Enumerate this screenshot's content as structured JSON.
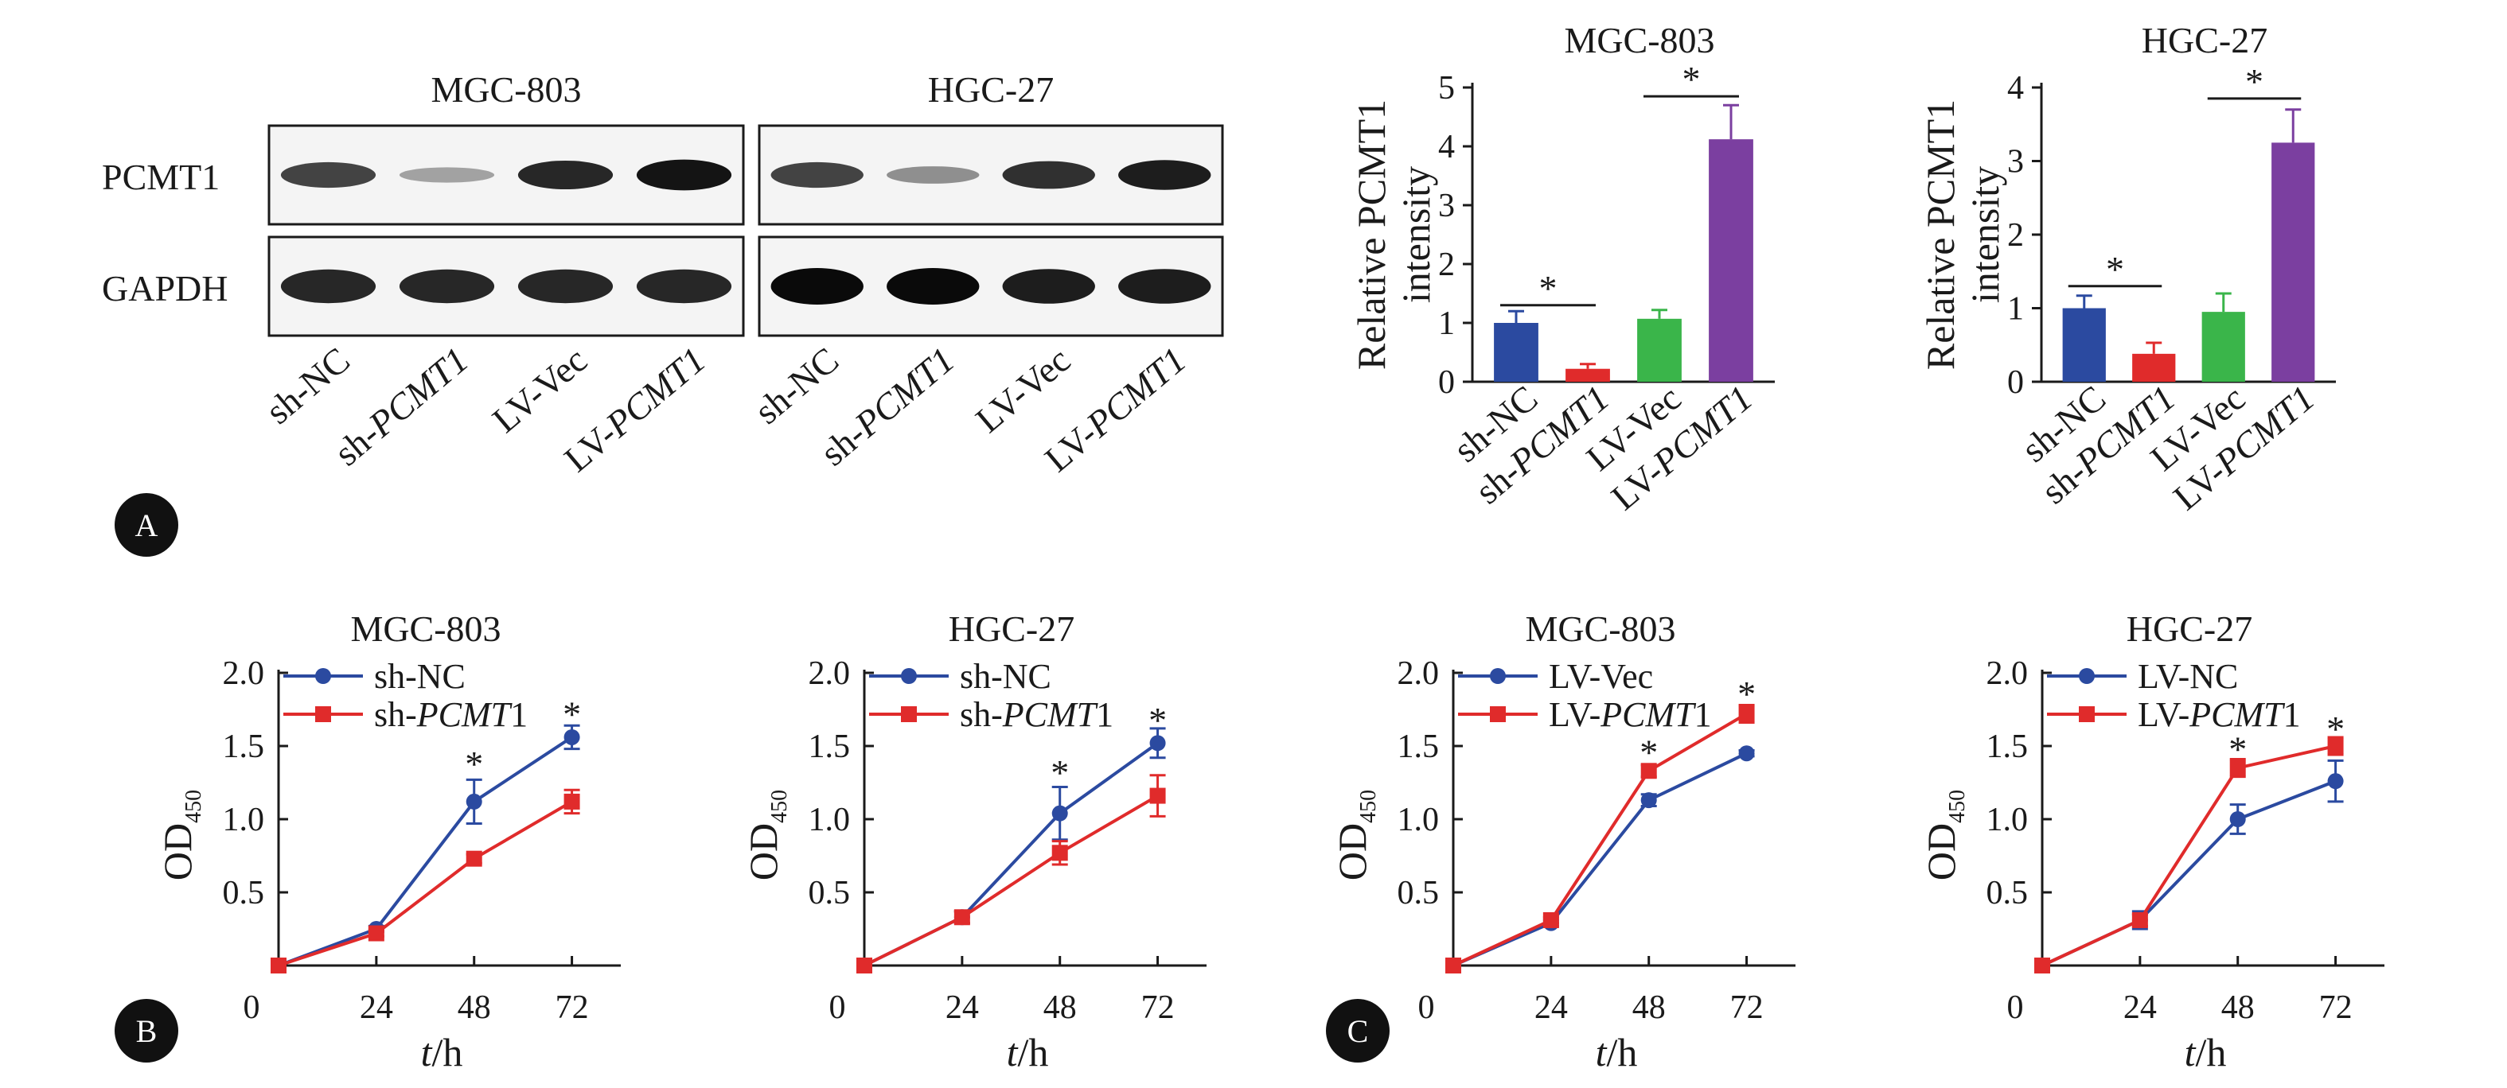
{
  "panels": {
    "a": "A",
    "b": "B",
    "c": "C"
  },
  "western_blot": {
    "rows": [
      "PCMT1",
      "GAPDH"
    ],
    "blots": [
      {
        "title": "MGC-803",
        "lanes": [
          "sh-NC",
          "sh-",
          "LV-Vec",
          "LV-"
        ],
        "lane_suffix": [
          "",
          "PCMT1",
          "",
          "PCMT1"
        ],
        "band_strength": {
          "PCMT1": [
            0.7,
            0.2,
            0.85,
            0.95
          ],
          "GAPDH": [
            0.85,
            0.85,
            0.85,
            0.85
          ]
        }
      },
      {
        "title": "HGC-27",
        "lanes": [
          "sh-NC",
          "sh-",
          "LV-Vec",
          "LV-"
        ],
        "lane_suffix": [
          "",
          "PCMT1",
          "",
          "PCMT1"
        ],
        "band_strength": {
          "PCMT1": [
            0.7,
            0.3,
            0.8,
            0.9
          ],
          "GAPDH": [
            1.0,
            1.0,
            0.9,
            0.9
          ]
        }
      }
    ]
  },
  "colors": {
    "blue": "#2b4aa0",
    "red": "#e02b2b",
    "green": "#3ab54a",
    "purple": "#7b3fa0",
    "ink": "#1a1a1a"
  },
  "chart_data": [
    {
      "type": "bar",
      "title": "MGC-803",
      "ylabel": [
        "Relative PCMT1",
        "intensity"
      ],
      "categories": [
        "sh-NC",
        "sh-PCMT1",
        "LV-Vec",
        "LV-PCMT1"
      ],
      "category_prefix": [
        "sh-NC",
        "sh-",
        "LV-Vec",
        "LV-"
      ],
      "category_italic": [
        "",
        "PCMT1",
        "",
        "PCMT1"
      ],
      "values": [
        1.0,
        0.22,
        1.07,
        4.12
      ],
      "errors": [
        0.2,
        0.08,
        0.15,
        0.58
      ],
      "bar_colors": [
        "#2b4aa0",
        "#e02b2b",
        "#3ab54a",
        "#7b3fa0"
      ],
      "ylim": [
        0,
        5
      ],
      "yticks": [
        0,
        1,
        2,
        3,
        4,
        5
      ],
      "significance": [
        {
          "from": 0,
          "to": 1,
          "label": "*",
          "at": 1.3
        },
        {
          "from": 2,
          "to": 3,
          "label": "*",
          "at": 4.85
        }
      ]
    },
    {
      "type": "bar",
      "title": "HGC-27",
      "ylabel": [
        "Relative PCMT1",
        "intensity"
      ],
      "categories": [
        "sh-NC",
        "sh-PCMT1",
        "LV-Vec",
        "LV-PCMT1"
      ],
      "category_prefix": [
        "sh-NC",
        "sh-",
        "LV-Vec",
        "LV-"
      ],
      "category_italic": [
        "",
        "PCMT1",
        "",
        "PCMT1"
      ],
      "values": [
        1.0,
        0.38,
        0.95,
        3.25
      ],
      "errors": [
        0.17,
        0.15,
        0.25,
        0.45
      ],
      "bar_colors": [
        "#2b4aa0",
        "#e02b2b",
        "#3ab54a",
        "#7b3fa0"
      ],
      "ylim": [
        0,
        4
      ],
      "yticks": [
        0,
        1,
        2,
        3,
        4
      ],
      "significance": [
        {
          "from": 0,
          "to": 1,
          "label": "*",
          "at": 1.3
        },
        {
          "from": 2,
          "to": 3,
          "label": "*",
          "at": 3.85
        }
      ]
    },
    {
      "type": "line",
      "title": "MGC-803",
      "x": [
        0,
        24,
        48,
        72
      ],
      "xticks": [
        0,
        24,
        48,
        72
      ],
      "xlim": [
        0,
        84
      ],
      "ylim": [
        0,
        2.0
      ],
      "yticks": [
        0.5,
        1.0,
        1.5,
        2.0
      ],
      "ytick_labels": [
        "0.5",
        "1.0",
        "1.5",
        "2.0"
      ],
      "zero_label": "0",
      "ylabel": {
        "main": "OD",
        "sub": "450"
      },
      "xlabel": {
        "italic": "t",
        "rest": "/h"
      },
      "series": [
        {
          "name": "sh-NC",
          "name_prefix": "sh-NC",
          "name_italic": "",
          "name_suffix": "",
          "marker": "circle",
          "color": "#2b4aa0",
          "values": [
            0.0,
            0.25,
            1.12,
            1.56
          ],
          "errors": [
            0.0,
            0.02,
            0.15,
            0.08
          ]
        },
        {
          "name": "sh-PCMT1",
          "name_prefix": "sh-",
          "name_italic": "PCMT",
          "name_suffix": "1",
          "marker": "square",
          "color": "#e02b2b",
          "values": [
            0.0,
            0.22,
            0.73,
            1.12
          ],
          "errors": [
            0.0,
            0.02,
            0.03,
            0.08
          ]
        }
      ],
      "stars": [
        {
          "x": 48,
          "label": "*",
          "above": 1.38
        },
        {
          "x": 72,
          "label": "*",
          "above": 1.72
        }
      ]
    },
    {
      "type": "line",
      "title": "HGC-27",
      "x": [
        0,
        24,
        48,
        72
      ],
      "xticks": [
        0,
        24,
        48,
        72
      ],
      "xlim": [
        0,
        84
      ],
      "ylim": [
        0,
        2.0
      ],
      "yticks": [
        0.5,
        1.0,
        1.5,
        2.0
      ],
      "ytick_labels": [
        "0.5",
        "1.0",
        "1.5",
        "2.0"
      ],
      "zero_label": "0",
      "ylabel": {
        "main": "OD",
        "sub": "450"
      },
      "xlabel": {
        "italic": "t",
        "rest": "/h"
      },
      "series": [
        {
          "name": "sh-NC",
          "name_prefix": "sh-NC",
          "name_italic": "",
          "name_suffix": "",
          "marker": "circle",
          "color": "#2b4aa0",
          "values": [
            0.0,
            0.33,
            1.04,
            1.52
          ],
          "errors": [
            0.0,
            0.04,
            0.18,
            0.1
          ]
        },
        {
          "name": "sh-PCMT1",
          "name_prefix": "sh-",
          "name_italic": "PCMT",
          "name_suffix": "1",
          "marker": "square",
          "color": "#e02b2b",
          "values": [
            0.0,
            0.33,
            0.77,
            1.16
          ],
          "errors": [
            0.0,
            0.04,
            0.08,
            0.14
          ]
        }
      ],
      "stars": [
        {
          "x": 48,
          "label": "*",
          "above": 1.32
        },
        {
          "x": 72,
          "label": "*",
          "above": 1.68
        }
      ]
    },
    {
      "type": "line",
      "title": "MGC-803",
      "x": [
        0,
        24,
        48,
        72
      ],
      "xticks": [
        0,
        24,
        48,
        72
      ],
      "xlim": [
        0,
        84
      ],
      "ylim": [
        0,
        2.0
      ],
      "yticks": [
        0.5,
        1.0,
        1.5,
        2.0
      ],
      "ytick_labels": [
        "0.5",
        "1.0",
        "1.5",
        "2.0"
      ],
      "zero_label": "0",
      "ylabel": {
        "main": "OD",
        "sub": "450"
      },
      "xlabel": {
        "italic": "t",
        "rest": "/h"
      },
      "series": [
        {
          "name": "LV-Vec",
          "name_prefix": "LV-Vec",
          "name_italic": "",
          "name_suffix": "",
          "marker": "circle",
          "color": "#2b4aa0",
          "values": [
            0.0,
            0.29,
            1.13,
            1.45
          ],
          "errors": [
            0.0,
            0.02,
            0.04,
            0.02
          ]
        },
        {
          "name": "LV-PCMT1",
          "name_prefix": "LV-",
          "name_italic": "PCMT",
          "name_suffix": "1",
          "marker": "square",
          "color": "#e02b2b",
          "values": [
            0.0,
            0.31,
            1.33,
            1.72
          ],
          "errors": [
            0.0,
            0.02,
            0.04,
            0.06
          ]
        }
      ],
      "stars": [
        {
          "x": 48,
          "label": "*",
          "above": 1.46
        },
        {
          "x": 72,
          "label": "*",
          "above": 1.86
        }
      ]
    },
    {
      "type": "line",
      "title": "HGC-27",
      "x": [
        0,
        24,
        48,
        72
      ],
      "xticks": [
        0,
        24,
        48,
        72
      ],
      "xlim": [
        0,
        84
      ],
      "ylim": [
        0,
        2.0
      ],
      "yticks": [
        0.5,
        1.0,
        1.5,
        2.0
      ],
      "ytick_labels": [
        "0.5",
        "1.0",
        "1.5",
        "2.0"
      ],
      "zero_label": "0",
      "ylabel": {
        "main": "OD",
        "sub": "450"
      },
      "xlabel": {
        "italic": "t",
        "rest": "/h"
      },
      "series": [
        {
          "name": "LV-NC",
          "name_prefix": "LV-NC",
          "name_italic": "",
          "name_suffix": "",
          "marker": "circle",
          "color": "#2b4aa0",
          "values": [
            0.0,
            0.31,
            1.0,
            1.26
          ],
          "errors": [
            0.0,
            0.06,
            0.1,
            0.14
          ]
        },
        {
          "name": "LV-PCMT1",
          "name_prefix": "LV-",
          "name_italic": "PCMT",
          "name_suffix": "1",
          "marker": "square",
          "color": "#e02b2b",
          "values": [
            0.0,
            0.31,
            1.35,
            1.5
          ],
          "errors": [
            0.0,
            0.04,
            0.06,
            0.06
          ]
        }
      ],
      "stars": [
        {
          "x": 48,
          "label": "*",
          "above": 1.48
        },
        {
          "x": 72,
          "label": "*",
          "above": 1.62
        }
      ]
    }
  ]
}
